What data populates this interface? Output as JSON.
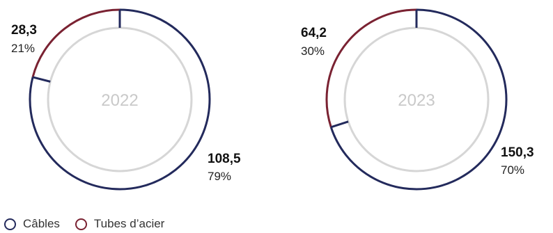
{
  "chart_data": [
    {
      "type": "pie",
      "center_label": "2022",
      "slices": [
        {
          "series": "Câbles",
          "value": "108,5",
          "percent": "79%",
          "share": 79
        },
        {
          "series": "Tubes d’acier",
          "value": "28,3",
          "percent": "21%",
          "share": 21
        }
      ]
    },
    {
      "type": "pie",
      "center_label": "2023",
      "slices": [
        {
          "series": "Câbles",
          "value": "150,3",
          "percent": "70%",
          "share": 70
        },
        {
          "series": "Tubes d’acier",
          "value": "64,2",
          "percent": "30%",
          "share": 30
        }
      ]
    }
  ],
  "legend": {
    "placement": "bottom-left",
    "items": [
      {
        "label": "Câbles",
        "color": "#232a5c"
      },
      {
        "label": "Tubes d’acier",
        "color": "#7a2232"
      }
    ]
  },
  "colors": {
    "cables": "#232a5c",
    "tubes": "#7a2232",
    "inner_ring": "#d6d6d6",
    "center_text": "#c9c9c9"
  }
}
